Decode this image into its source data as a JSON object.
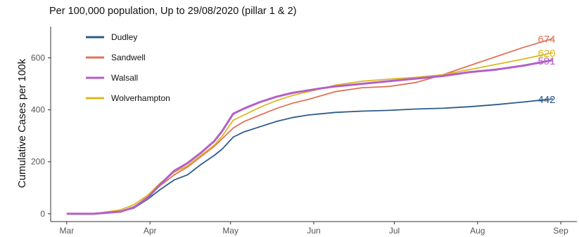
{
  "chart_data": {
    "type": "line",
    "title": "Per 100,000 population, Up to 29/08/2020 (pillar 1 & 2)",
    "xlabel": "",
    "ylabel": "Cumulative Cases per 100k",
    "x_ticks": [
      {
        "label": "Mar",
        "day": 0
      },
      {
        "label": "Apr",
        "day": 31
      },
      {
        "label": "May",
        "day": 61
      },
      {
        "label": "Jun",
        "day": 92
      },
      {
        "label": "Jul",
        "day": 122
      },
      {
        "label": "Aug",
        "day": 153
      },
      {
        "label": "Sep",
        "day": 184
      }
    ],
    "y_ticks": [
      0,
      200,
      400,
      600
    ],
    "xlim_days": [
      -6,
      190
    ],
    "ylim": [
      -30,
      720
    ],
    "grid": false,
    "legend": "top-left",
    "series": [
      {
        "name": "Dudley",
        "color": "#2e5b8a",
        "end_label": "442",
        "points": [
          [
            0,
            0
          ],
          [
            10,
            0
          ],
          [
            20,
            8
          ],
          [
            25,
            22
          ],
          [
            30,
            55
          ],
          [
            35,
            95
          ],
          [
            40,
            130
          ],
          [
            45,
            150
          ],
          [
            50,
            190
          ],
          [
            55,
            225
          ],
          [
            58,
            250
          ],
          [
            62,
            295
          ],
          [
            66,
            315
          ],
          [
            72,
            335
          ],
          [
            78,
            355
          ],
          [
            84,
            370
          ],
          [
            90,
            380
          ],
          [
            95,
            385
          ],
          [
            100,
            390
          ],
          [
            110,
            395
          ],
          [
            120,
            398
          ],
          [
            130,
            403
          ],
          [
            140,
            406
          ],
          [
            150,
            412
          ],
          [
            160,
            420
          ],
          [
            170,
            430
          ],
          [
            181,
            442
          ]
        ]
      },
      {
        "name": "Sandwell",
        "color": "#e0735a",
        "end_label": "674",
        "points": [
          [
            0,
            0
          ],
          [
            10,
            0
          ],
          [
            20,
            10
          ],
          [
            25,
            25
          ],
          [
            30,
            65
          ],
          [
            35,
            110
          ],
          [
            40,
            150
          ],
          [
            45,
            180
          ],
          [
            50,
            220
          ],
          [
            55,
            260
          ],
          [
            58,
            290
          ],
          [
            62,
            330
          ],
          [
            66,
            355
          ],
          [
            72,
            380
          ],
          [
            78,
            405
          ],
          [
            84,
            425
          ],
          [
            90,
            440
          ],
          [
            95,
            455
          ],
          [
            100,
            470
          ],
          [
            110,
            485
          ],
          [
            120,
            490
          ],
          [
            130,
            505
          ],
          [
            140,
            535
          ],
          [
            150,
            570
          ],
          [
            160,
            605
          ],
          [
            170,
            640
          ],
          [
            181,
            674
          ]
        ]
      },
      {
        "name": "Walsall",
        "color": "#b35fc8",
        "end_label": "591",
        "points": [
          [
            0,
            0
          ],
          [
            10,
            0
          ],
          [
            20,
            8
          ],
          [
            25,
            25
          ],
          [
            30,
            60
          ],
          [
            35,
            115
          ],
          [
            40,
            165
          ],
          [
            45,
            195
          ],
          [
            50,
            235
          ],
          [
            55,
            280
          ],
          [
            58,
            320
          ],
          [
            62,
            385
          ],
          [
            66,
            405
          ],
          [
            72,
            430
          ],
          [
            78,
            450
          ],
          [
            84,
            465
          ],
          [
            90,
            475
          ],
          [
            95,
            483
          ],
          [
            100,
            490
          ],
          [
            110,
            500
          ],
          [
            120,
            510
          ],
          [
            130,
            520
          ],
          [
            140,
            530
          ],
          [
            150,
            545
          ],
          [
            160,
            555
          ],
          [
            170,
            570
          ],
          [
            181,
            591
          ]
        ]
      },
      {
        "name": "Wolverhampton",
        "color": "#dbb81f",
        "end_label": "620",
        "points": [
          [
            0,
            0
          ],
          [
            10,
            0
          ],
          [
            20,
            15
          ],
          [
            25,
            35
          ],
          [
            30,
            70
          ],
          [
            35,
            120
          ],
          [
            40,
            160
          ],
          [
            45,
            185
          ],
          [
            50,
            225
          ],
          [
            55,
            265
          ],
          [
            58,
            300
          ],
          [
            62,
            360
          ],
          [
            66,
            380
          ],
          [
            72,
            410
          ],
          [
            78,
            435
          ],
          [
            84,
            455
          ],
          [
            90,
            470
          ],
          [
            95,
            482
          ],
          [
            100,
            495
          ],
          [
            110,
            510
          ],
          [
            120,
            518
          ],
          [
            130,
            525
          ],
          [
            140,
            535
          ],
          [
            150,
            555
          ],
          [
            160,
            575
          ],
          [
            170,
            595
          ],
          [
            181,
            620
          ]
        ]
      }
    ]
  }
}
